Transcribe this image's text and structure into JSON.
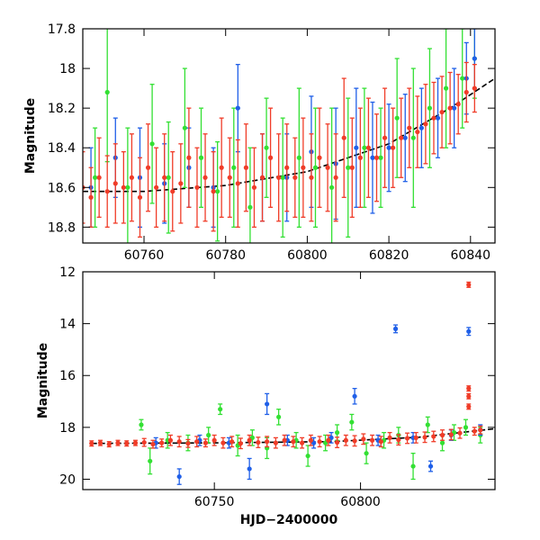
{
  "chart_data": [
    {
      "type": "scatter",
      "panel": "top",
      "title": "",
      "xlabel": "",
      "ylabel": "Magnitude",
      "xlim": [
        60745,
        60846
      ],
      "ylim": [
        18.88,
        17.8
      ],
      "y_inverted": true,
      "xticks": [
        60760,
        60780,
        60800,
        60820,
        60840
      ],
      "yticks": [
        17.8,
        18,
        18.2,
        18.4,
        18.6,
        18.8
      ],
      "ytick_labels": [
        "17.8",
        "18",
        "18.2",
        "18.4",
        "18.6",
        "18.8"
      ],
      "grid": false,
      "legend": "none",
      "series_colors": [
        "#33e033",
        "#1f5fe8",
        "#f03c28"
      ],
      "trend": {
        "color": "#000000",
        "style": "dashed-to-solid",
        "x": [
          60745,
          60760,
          60780,
          60800,
          60820,
          60835,
          60846
        ],
        "y": [
          18.62,
          18.62,
          18.59,
          18.52,
          18.38,
          18.2,
          18.05
        ]
      },
      "series": [
        {
          "color": "#33e033",
          "x": [
            60748,
            60751,
            60756,
            60762,
            60766,
            60770,
            60774,
            60778,
            60782,
            60786,
            60790,
            60794,
            60798,
            60802,
            60806,
            60810,
            60814,
            60818,
            60822,
            60826,
            60830,
            60834,
            60838,
            60841
          ],
          "y": [
            18.55,
            18.12,
            18.6,
            18.38,
            18.55,
            18.3,
            18.45,
            18.62,
            18.5,
            18.7,
            18.4,
            18.55,
            18.45,
            18.5,
            18.6,
            18.5,
            18.4,
            18.45,
            18.25,
            18.35,
            18.2,
            18.1,
            18.05,
            17.95
          ],
          "err": [
            0.25,
            0.35,
            0.3,
            0.3,
            0.28,
            0.3,
            0.25,
            0.25,
            0.3,
            0.3,
            0.25,
            0.3,
            0.35,
            0.3,
            0.4,
            0.35,
            0.3,
            0.25,
            0.3,
            0.35,
            0.3,
            0.3,
            0.25,
            0.2
          ]
        },
        {
          "color": "#1f5fe8",
          "x": [
            60747,
            60753,
            60759,
            60765,
            60771,
            60777,
            60783,
            60789,
            60795,
            60801,
            60807,
            60812,
            60816,
            60820,
            60824,
            60828,
            60832,
            60836,
            60839,
            60841
          ],
          "y": [
            18.6,
            18.45,
            18.55,
            18.58,
            18.5,
            18.6,
            18.2,
            18.55,
            18.55,
            18.42,
            18.48,
            18.4,
            18.45,
            18.4,
            18.35,
            18.3,
            18.25,
            18.2,
            18.05,
            17.95
          ],
          "err": [
            0.2,
            0.2,
            0.25,
            0.2,
            0.2,
            0.2,
            0.22,
            0.22,
            0.22,
            0.28,
            0.28,
            0.3,
            0.28,
            0.22,
            0.22,
            0.2,
            0.2,
            0.2,
            0.18,
            0.15
          ]
        },
        {
          "color": "#f03c28",
          "x": [
            60745,
            60747,
            60749,
            60751,
            60753,
            60755,
            60757,
            60759,
            60761,
            60763,
            60765,
            60767,
            60769,
            60771,
            60773,
            60775,
            60777,
            60779,
            60781,
            60783,
            60785,
            60787,
            60789,
            60791,
            60793,
            60795,
            60797,
            60799,
            60801,
            60803,
            60805,
            60807,
            60809,
            60811,
            60813,
            60815,
            60817,
            60819,
            60821,
            60823,
            60825,
            60827,
            60829,
            60831,
            60833,
            60835,
            60837,
            60839,
            60841
          ],
          "y": [
            18.6,
            18.65,
            18.55,
            18.62,
            18.58,
            18.6,
            18.55,
            18.65,
            18.5,
            18.6,
            18.55,
            18.62,
            18.58,
            18.45,
            18.6,
            18.55,
            18.62,
            18.5,
            18.55,
            18.58,
            18.5,
            18.6,
            18.55,
            18.45,
            18.55,
            18.5,
            18.55,
            18.5,
            18.55,
            18.45,
            18.5,
            18.55,
            18.35,
            18.5,
            18.45,
            18.4,
            18.45,
            18.35,
            18.4,
            18.35,
            18.3,
            18.32,
            18.28,
            18.25,
            18.22,
            18.2,
            18.18,
            18.12,
            18.1
          ],
          "err": [
            0.18,
            0.15,
            0.2,
            0.18,
            0.2,
            0.18,
            0.22,
            0.2,
            0.22,
            0.2,
            0.22,
            0.2,
            0.2,
            0.25,
            0.2,
            0.22,
            0.2,
            0.25,
            0.2,
            0.22,
            0.22,
            0.2,
            0.22,
            0.25,
            0.22,
            0.22,
            0.2,
            0.25,
            0.22,
            0.25,
            0.22,
            0.22,
            0.3,
            0.25,
            0.25,
            0.25,
            0.22,
            0.25,
            0.2,
            0.2,
            0.2,
            0.18,
            0.2,
            0.18,
            0.18,
            0.18,
            0.15,
            0.15,
            0.12
          ]
        }
      ]
    },
    {
      "type": "scatter",
      "panel": "bottom",
      "title": "",
      "xlabel": "HJD−2400000",
      "ylabel": "Magnitude",
      "xlim": [
        60705,
        60846
      ],
      "ylim": [
        20.4,
        12
      ],
      "y_inverted": true,
      "xticks": [
        60750,
        60800
      ],
      "yticks": [
        12,
        14,
        16,
        18,
        20
      ],
      "ytick_labels": [
        "12",
        "14",
        "16",
        "18",
        "20"
      ],
      "grid": false,
      "legend": "none",
      "series_colors": [
        "#33e033",
        "#1f5fe8",
        "#f03c28"
      ],
      "trend": {
        "color": "#000000",
        "style": "dashed-to-solid",
        "x": [
          60708,
          60750,
          60790,
          60820,
          60846
        ],
        "y": [
          18.62,
          18.6,
          18.55,
          18.38,
          18.05
        ]
      },
      "series": [
        {
          "color": "#33e033",
          "x": [
            60725,
            60728,
            60734,
            60741,
            60748,
            60752,
            60758,
            60763,
            60768,
            60772,
            60778,
            60782,
            60788,
            60792,
            60797,
            60802,
            60808,
            60813,
            60818,
            60823,
            60828,
            60832,
            60836,
            60841
          ],
          "y": [
            17.9,
            19.3,
            18.5,
            18.6,
            18.3,
            17.3,
            18.7,
            18.4,
            18.8,
            17.6,
            18.5,
            19.1,
            18.6,
            18.2,
            17.8,
            19.0,
            18.5,
            18.3,
            19.5,
            17.9,
            18.6,
            18.2,
            18.0,
            18.3
          ],
          "err": [
            0.2,
            0.5,
            0.3,
            0.3,
            0.3,
            0.2,
            0.4,
            0.3,
            0.4,
            0.3,
            0.3,
            0.4,
            0.3,
            0.3,
            0.3,
            0.4,
            0.3,
            0.3,
            0.5,
            0.3,
            0.3,
            0.3,
            0.3,
            0.3
          ]
        },
        {
          "color": "#1f5fe8",
          "x": [
            60730,
            60738,
            60745,
            60755,
            60762,
            60768,
            60775,
            60784,
            60790,
            60798,
            60806,
            60812,
            60818,
            60824,
            60831,
            60837,
            60841
          ],
          "y": [
            18.6,
            19.9,
            18.5,
            18.6,
            19.6,
            17.1,
            18.5,
            18.6,
            18.4,
            16.8,
            18.5,
            14.2,
            18.4,
            19.5,
            18.3,
            14.3,
            18.1
          ],
          "err": [
            0.2,
            0.3,
            0.2,
            0.2,
            0.4,
            0.4,
            0.2,
            0.2,
            0.2,
            0.3,
            0.2,
            0.15,
            0.2,
            0.2,
            0.2,
            0.15,
            0.2
          ]
        },
        {
          "color": "#f03c28",
          "x": [
            60708,
            60711,
            60714,
            60717,
            60720,
            60723,
            60726,
            60729,
            60732,
            60735,
            60738,
            60741,
            60744,
            60747,
            60750,
            60753,
            60756,
            60759,
            60762,
            60765,
            60768,
            60771,
            60774,
            60777,
            60780,
            60783,
            60786,
            60789,
            60792,
            60795,
            60798,
            60801,
            60804,
            60807,
            60810,
            60813,
            60816,
            60819,
            60822,
            60825,
            60828,
            60831,
            60834,
            60837,
            60837,
            60837,
            60837,
            60839,
            60841
          ],
          "y": [
            18.62,
            18.6,
            18.65,
            18.6,
            18.62,
            18.6,
            18.58,
            18.65,
            18.6,
            18.5,
            18.55,
            18.62,
            18.55,
            18.6,
            18.5,
            18.6,
            18.55,
            18.62,
            18.5,
            18.58,
            18.55,
            18.6,
            18.5,
            18.55,
            18.6,
            18.5,
            18.55,
            18.5,
            18.58,
            18.5,
            18.52,
            18.45,
            18.5,
            18.55,
            18.4,
            18.48,
            18.42,
            18.4,
            18.38,
            18.35,
            18.3,
            18.28,
            18.22,
            12.5,
            16.5,
            16.8,
            17.2,
            18.15,
            18.1
          ],
          "err": [
            0.1,
            0.1,
            0.1,
            0.1,
            0.1,
            0.1,
            0.15,
            0.15,
            0.15,
            0.2,
            0.2,
            0.15,
            0.2,
            0.15,
            0.2,
            0.2,
            0.2,
            0.2,
            0.2,
            0.2,
            0.2,
            0.2,
            0.2,
            0.2,
            0.2,
            0.2,
            0.2,
            0.2,
            0.2,
            0.2,
            0.2,
            0.2,
            0.2,
            0.2,
            0.2,
            0.2,
            0.2,
            0.2,
            0.2,
            0.2,
            0.2,
            0.2,
            0.2,
            0.1,
            0.1,
            0.1,
            0.1,
            0.15,
            0.15
          ]
        }
      ]
    }
  ]
}
